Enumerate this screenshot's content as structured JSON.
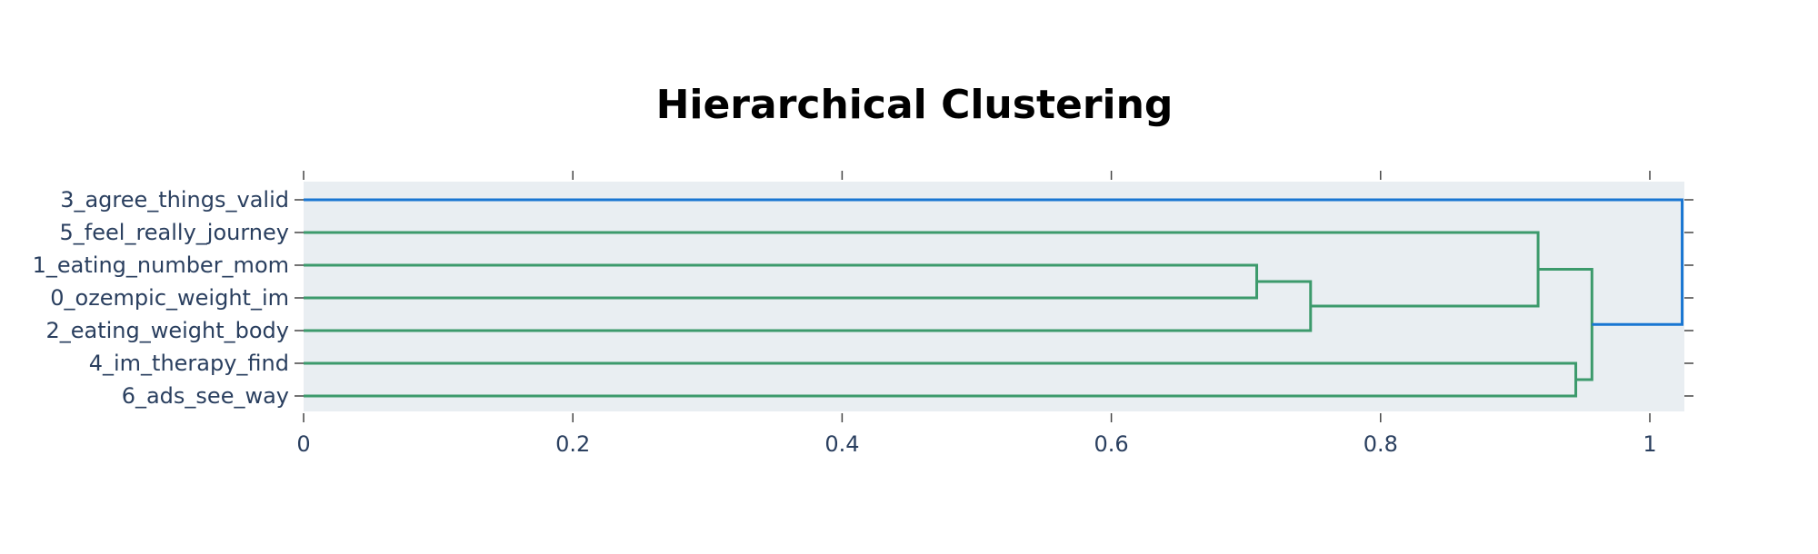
{
  "chart_data": {
    "type": "dendrogram",
    "title": "Hierarchical Clustering",
    "orientation": "horizontal",
    "xlim": [
      0,
      1.025
    ],
    "x_ticks": [
      0,
      0.2,
      0.4,
      0.6,
      0.8,
      1
    ],
    "x_tick_labels": [
      "0",
      "0.2",
      "0.4",
      "0.6",
      "0.8",
      "1"
    ],
    "grid": false,
    "plot_background": "#e9eef2",
    "leaves": [
      "3_agree_things_valid",
      "5_feel_really_journey",
      "1_eating_number_mom",
      "0_ozempic_weight_im",
      "2_eating_weight_body",
      "4_im_therapy_find",
      "6_ads_see_way"
    ],
    "merges": [
      {
        "id": "m1",
        "left": "1_eating_number_mom",
        "right": "0_ozempic_weight_im",
        "distance": 0.708,
        "color": "#3c9a6c"
      },
      {
        "id": "m2",
        "left": "m1",
        "right": "2_eating_weight_body",
        "distance": 0.748,
        "color": "#3c9a6c"
      },
      {
        "id": "m3",
        "left": "5_feel_really_journey",
        "right": "m2",
        "distance": 0.917,
        "color": "#3c9a6c"
      },
      {
        "id": "m4",
        "left": "4_im_therapy_find",
        "right": "6_ads_see_way",
        "distance": 0.945,
        "color": "#3c9a6c"
      },
      {
        "id": "m5",
        "left": "m3",
        "right": "m4",
        "distance": 0.957,
        "color": "#3c9a6c"
      },
      {
        "id": "m6",
        "left": "3_agree_things_valid",
        "right": "m5",
        "distance": 1.024,
        "color": "#1976d2"
      }
    ],
    "colors": {
      "cluster_green": "#3c9a6c",
      "root_blue": "#1976d2",
      "label_text": "#2a3f5f",
      "tick_color": "#444444"
    }
  }
}
